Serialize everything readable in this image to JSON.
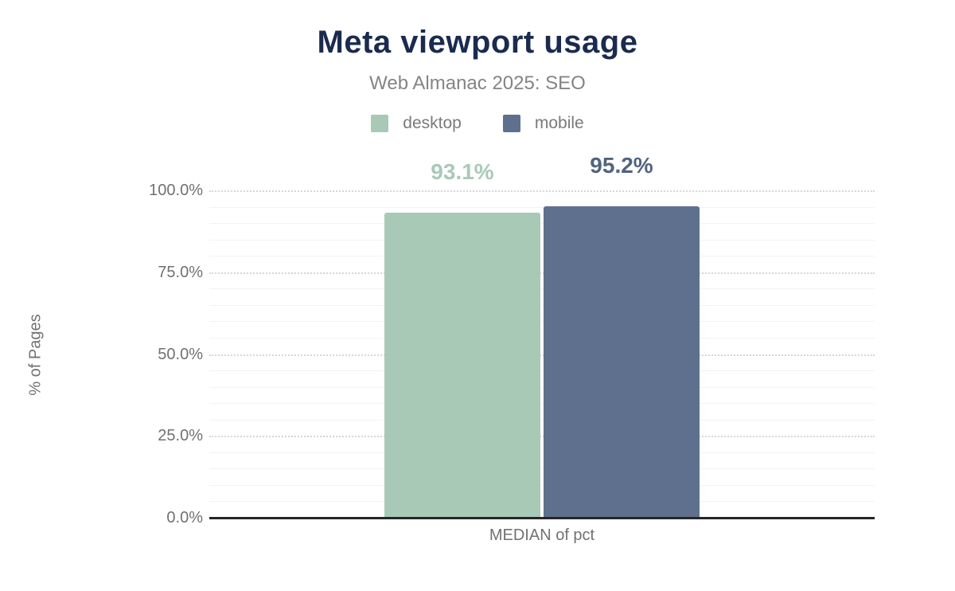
{
  "title": "Meta viewport usage",
  "subtitle": "Web Almanac 2025: SEO",
  "colors": {
    "title": "#1a2b4f",
    "subtitle": "#848484",
    "axis_text": "#717171",
    "axis_line": "#262626",
    "grid_major": "#d6d6d6",
    "grid_minor": "#f2f2f2"
  },
  "legend": [
    {
      "label": "desktop",
      "color": "#a8c9b6"
    },
    {
      "label": "mobile",
      "color": "#5e708d"
    }
  ],
  "chart_data": {
    "type": "bar",
    "categories": [
      "MEDIAN of pct"
    ],
    "series": [
      {
        "name": "desktop",
        "values": [
          93.1
        ],
        "color": "#a8c9b6",
        "data_labels": [
          "93.1%"
        ],
        "label_color": "#a9c9b7"
      },
      {
        "name": "mobile",
        "values": [
          95.2
        ],
        "color": "#5e708d",
        "data_labels": [
          "95.2%"
        ],
        "label_color": "#51637f"
      }
    ],
    "title": "Meta viewport usage",
    "subtitle": "Web Almanac 2025: SEO",
    "xlabel": "MEDIAN of pct",
    "ylabel": "% of Pages",
    "ylim": [
      0,
      100
    ],
    "yticks": [
      {
        "value": 0,
        "label": "0.0%"
      },
      {
        "value": 25,
        "label": "25.0%"
      },
      {
        "value": 50,
        "label": "50.0%"
      },
      {
        "value": 75,
        "label": "75.0%"
      },
      {
        "value": 100,
        "label": "100.0%"
      }
    ],
    "grid": {
      "major_step": 25,
      "minor_step": 5,
      "major_style": "dotted",
      "minor_style": "solid"
    },
    "legend_position": "top"
  }
}
